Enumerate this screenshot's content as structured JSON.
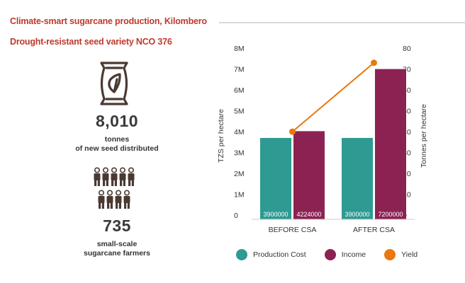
{
  "header": {
    "title": "Climate-smart sugarcane production, Kilombero",
    "subtitle": "Drought-resistant seed variety NCO 376"
  },
  "stats": [
    {
      "value": "8,010",
      "label_line1": "tonnes",
      "label_line2": "of new seed distributed",
      "icon": "seed-bag-icon"
    },
    {
      "value": "735",
      "label_line1": "small-scale",
      "label_line2": "sugarcane farmers",
      "icon": "farmers-group-icon"
    }
  ],
  "colors": {
    "title": "#c0392b",
    "production_cost": "#2e9a92",
    "income": "#8b2252",
    "yield": "#e8780f",
    "icon": "#4a3a33"
  },
  "chart_data": {
    "type": "bar",
    "categories": [
      "BEFORE CSA",
      "AFTER CSA"
    ],
    "series": [
      {
        "name": "Production Cost",
        "values": [
          3900000,
          3900000
        ],
        "labels": [
          "3900000",
          "3900000"
        ],
        "axis": "left"
      },
      {
        "name": "Income",
        "values": [
          4224000,
          7200000
        ],
        "labels": [
          "4224000",
          "7200000"
        ],
        "axis": "left"
      },
      {
        "name": "Yield",
        "type": "line",
        "values": [
          42,
          75
        ],
        "axis": "right"
      }
    ],
    "ylabel": "TZS per hectare",
    "y2label": "Tonnes per hectare",
    "ylim": [
      0,
      8000000
    ],
    "y2lim": [
      0,
      80
    ],
    "yticks": [
      "0",
      "1M",
      "2M",
      "3M",
      "4M",
      "5M",
      "6M",
      "7M",
      "8M"
    ],
    "y2ticks": [
      "0",
      "10",
      "20",
      "30",
      "40",
      "50",
      "60",
      "70",
      "80"
    ],
    "legend": "bottom",
    "grid": false
  }
}
